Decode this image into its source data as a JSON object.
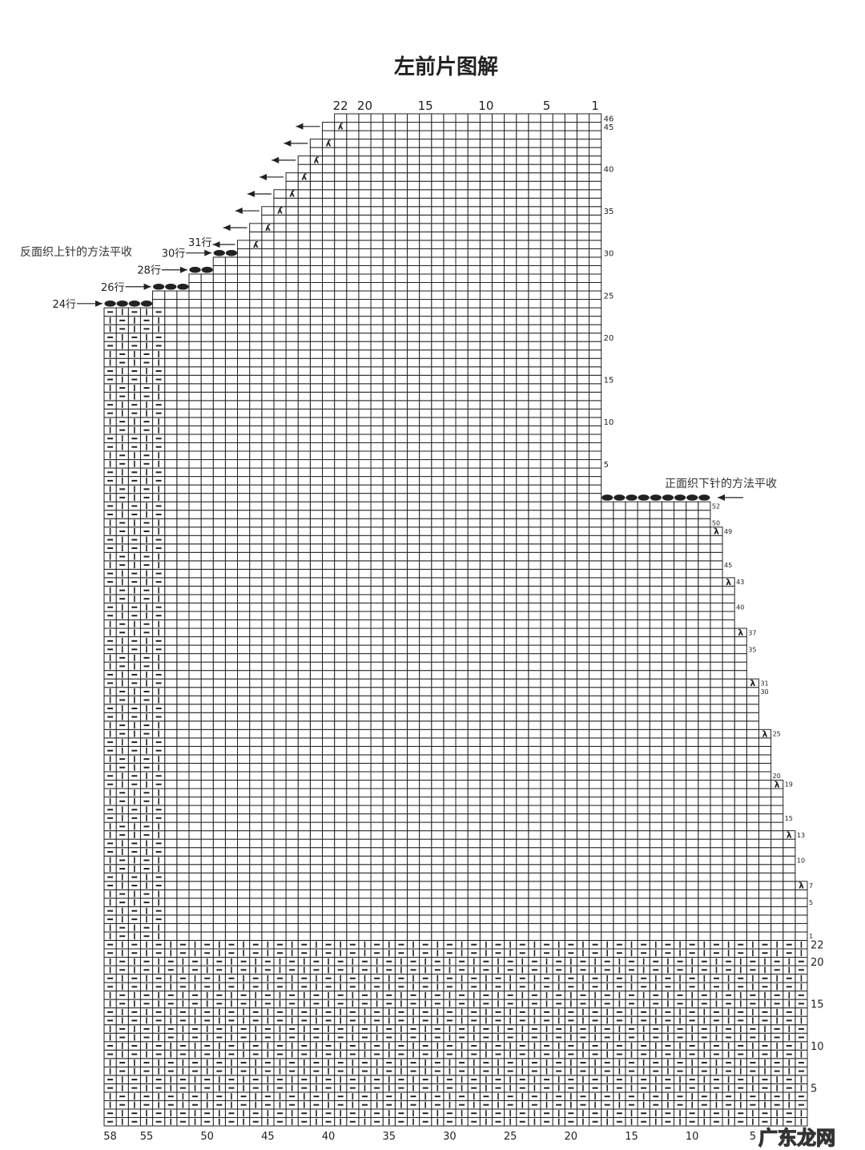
{
  "title": "左前片图解",
  "annotations": {
    "left_bind_off": "反面织上针的方法平收",
    "right_bind_off": "正面织下针的方法平收"
  },
  "row_callouts": [
    {
      "label": "24行",
      "row": 24,
      "direction": "right"
    },
    {
      "label": "26行",
      "row": 26,
      "direction": "right"
    },
    {
      "label": "28行",
      "row": 28,
      "direction": "right"
    },
    {
      "label": "30行",
      "row": 30,
      "direction": "right"
    },
    {
      "label": "31行",
      "row": 31,
      "direction": "left"
    }
  ],
  "pattern": {
    "total_stitches": 58,
    "ribbing_rows": 22,
    "body_rows": 52,
    "upper_rows": 46,
    "upper_stitches": 22,
    "edge_band_stitches": 5,
    "body_decrease_rows": [
      7,
      13,
      19,
      25,
      31,
      37,
      43,
      49
    ],
    "upper_decrease_rows": [
      31,
      33,
      35,
      37,
      39,
      41,
      43,
      45
    ],
    "upper_bind_offs": [
      {
        "row": 24,
        "stitches": 4
      },
      {
        "row": 26,
        "stitches": 3
      },
      {
        "row": 28,
        "stitches": 2
      },
      {
        "row": 30,
        "stitches": 2
      }
    ],
    "right_bind_off": {
      "row": 1,
      "stitches": 9
    },
    "symbols": {
      "knit": "|",
      "purl": "—",
      "decrease_right": "λ",
      "decrease_left": "λ",
      "bind_off": "●"
    }
  },
  "labels": {
    "bottom_columns": [
      "58",
      "55",
      "50",
      "45",
      "40",
      "35",
      "30",
      "25",
      "20",
      "15",
      "10",
      "5"
    ],
    "top_columns": [
      "22",
      "20",
      "15",
      "10",
      "5",
      "1"
    ],
    "ribbing_rows": [
      "5",
      "10",
      "15",
      "20",
      "22"
    ],
    "body_rows": [
      "1",
      "5",
      "7",
      "10",
      "13",
      "15",
      "19",
      "20",
      "25",
      "30",
      "31",
      "35",
      "37",
      "40",
      "43",
      "45",
      "49",
      "50",
      "52"
    ],
    "upper_rows": [
      "5",
      "10",
      "15",
      "20",
      "25",
      "30",
      "35",
      "40",
      "45",
      "46"
    ],
    "upper_first_row": "1"
  },
  "colors": {
    "ink": "#222222",
    "background": "#ffffff"
  },
  "watermark": "广东龙网"
}
